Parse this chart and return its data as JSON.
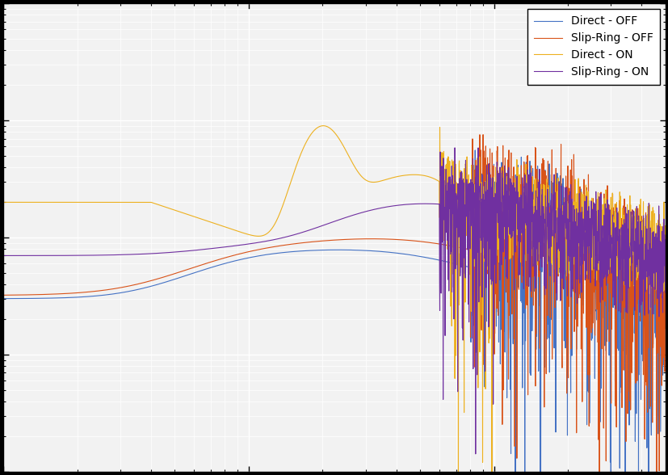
{
  "colors": {
    "direct_off": "#4472c4",
    "slipring_off": "#d95319",
    "direct_on": "#edb120",
    "slipring_on": "#7030a0"
  },
  "legend_labels": [
    "Direct - OFF",
    "Slip-Ring - OFF",
    "Direct - ON",
    "Slip-Ring - ON"
  ],
  "xmin": 1,
  "xmax": 500,
  "ymin": 1e-09,
  "ymax": 1e-05,
  "bg_color": "#f2f2f2",
  "grid_color": "#ffffff",
  "fig_bg": "#000000",
  "linewidth": 0.8,
  "base_direct_off": 3e-08,
  "base_slipring_off": 3.2e-08,
  "base_direct_on": 2e-07,
  "base_slipring_on": 7e-08,
  "convergence_level": 1.5e-07
}
